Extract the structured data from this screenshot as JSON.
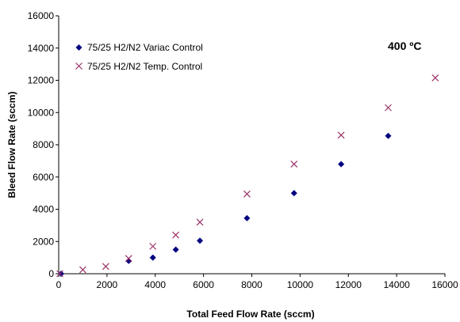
{
  "chart_data": {
    "type": "scatter",
    "title": "",
    "annotation": "400 ºC",
    "xlabel": "Total Feed Flow Rate (sccm)",
    "ylabel": "Bleed Flow Rate (sccm)",
    "xlim": [
      0,
      16000
    ],
    "ylim": [
      0,
      16000
    ],
    "xticks": [
      0,
      2000,
      4000,
      6000,
      8000,
      10000,
      12000,
      14000,
      16000
    ],
    "yticks": [
      0,
      2000,
      4000,
      6000,
      8000,
      10000,
      12000,
      14000,
      16000
    ],
    "grid": false,
    "legend_position": "top-left",
    "series": [
      {
        "name": "75/25 H2/N2 Variac Control",
        "marker": "diamond",
        "color": "#000080",
        "points": [
          {
            "x": 100,
            "y": 0
          },
          {
            "x": 2900,
            "y": 800
          },
          {
            "x": 3900,
            "y": 1000
          },
          {
            "x": 4850,
            "y": 1500
          },
          {
            "x": 5850,
            "y": 2050
          },
          {
            "x": 7800,
            "y": 3450
          },
          {
            "x": 9750,
            "y": 5000
          },
          {
            "x": 11700,
            "y": 6800
          },
          {
            "x": 13650,
            "y": 8550
          }
        ]
      },
      {
        "name": "75/25 H2/N2 Temp. Control",
        "marker": "x",
        "color": "#993366",
        "points": [
          {
            "x": 50,
            "y": 0
          },
          {
            "x": 1000,
            "y": 250
          },
          {
            "x": 1950,
            "y": 450
          },
          {
            "x": 2900,
            "y": 950
          },
          {
            "x": 3900,
            "y": 1700
          },
          {
            "x": 4850,
            "y": 2400
          },
          {
            "x": 5850,
            "y": 3200
          },
          {
            "x": 7800,
            "y": 4950
          },
          {
            "x": 9750,
            "y": 6800
          },
          {
            "x": 11700,
            "y": 8600
          },
          {
            "x": 13650,
            "y": 10300
          },
          {
            "x": 15600,
            "y": 12150
          }
        ]
      }
    ]
  }
}
